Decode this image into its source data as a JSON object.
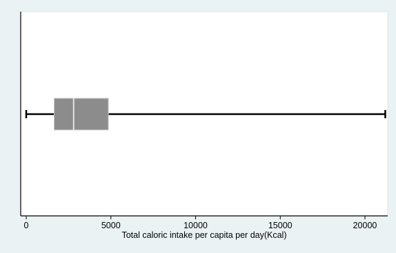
{
  "chart_data": {
    "type": "box",
    "orientation": "horizontal",
    "title": "",
    "xlabel": "Total caloric intake per capita per day(Kcal)",
    "ylabel": "",
    "xlim": [
      0,
      21500
    ],
    "xticks": [
      0,
      5000,
      10000,
      15000,
      20000
    ],
    "tick_labels": [
      "0",
      "5000",
      "10000",
      "15000",
      "20000"
    ],
    "grid": false,
    "legend": "none",
    "box": {
      "min": 0,
      "q1": 1650,
      "median": 2800,
      "q3": 4850,
      "max": 21200
    },
    "colors": {
      "page_background": "#eaf2f3",
      "plot_background": "#ffffff",
      "box_fill": "#8c8c8c",
      "box_edge": "#c8c8c8",
      "whisker": "#000000"
    }
  }
}
